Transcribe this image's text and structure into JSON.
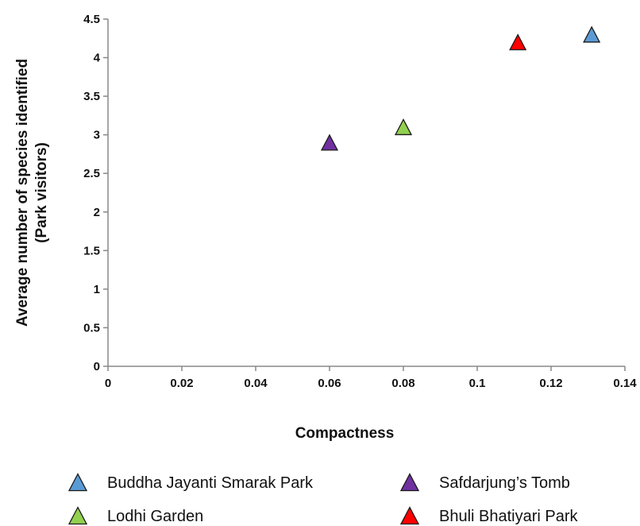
{
  "chart_data": {
    "type": "scatter",
    "title": "",
    "xlabel": "Compactness",
    "ylabel": [
      "Average number of species identified",
      "(Park visitors)"
    ],
    "xlim": [
      0,
      0.14
    ],
    "ylim": [
      0,
      4.5
    ],
    "x_ticks": [
      "0",
      "0.02",
      "0.04",
      "0.06",
      "0.08",
      "0.1",
      "0.12",
      "0.14"
    ],
    "y_ticks": [
      "0",
      "0.5",
      "1",
      "1.5",
      "2",
      "2.5",
      "3",
      "3.5",
      "4",
      "4.5"
    ],
    "grid": false,
    "legend_position": "bottom",
    "marker": "triangle",
    "series": [
      {
        "name": "Buddha Jayanti Smarak Park",
        "color": "#5b9bd5",
        "x": [
          0.131
        ],
        "y": [
          4.3
        ]
      },
      {
        "name": "Safdarjung’s Tomb",
        "color": "#7030a0",
        "x": [
          0.06
        ],
        "y": [
          2.9
        ]
      },
      {
        "name": "Lodhi Garden",
        "color": "#92d050",
        "x": [
          0.08
        ],
        "y": [
          3.1
        ]
      },
      {
        "name": "Bhuli Bhatiyari Park",
        "color": "#ff0000",
        "x": [
          0.111
        ],
        "y": [
          4.2
        ]
      }
    ]
  }
}
